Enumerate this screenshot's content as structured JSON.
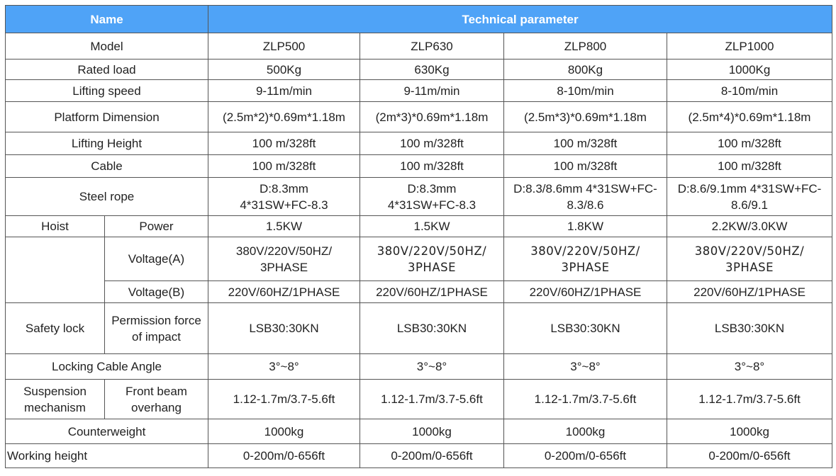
{
  "header": {
    "name": "Name",
    "technical_parameter": "Technical parameter"
  },
  "rows": {
    "model": {
      "label": "Model",
      "values": [
        "ZLP500",
        "ZLP630",
        "ZLP800",
        "ZLP1000"
      ]
    },
    "rated_load": {
      "label": "Rated load",
      "values": [
        "500Kg",
        "630Kg",
        "800Kg",
        "1000Kg"
      ]
    },
    "lifting_speed": {
      "label": "Lifting speed",
      "values": [
        "9-11m/min",
        "9-11m/min",
        "8-10m/min",
        "8-10m/min"
      ]
    },
    "platform_dimension": {
      "label": "Platform Dimension",
      "values": [
        "(2.5m*2)*0.69m*1.18m",
        "(2m*3)*0.69m*1.18m",
        "(2.5m*3)*0.69m*1.18m",
        "(2.5m*4)*0.69m*1.18m"
      ]
    },
    "lifting_height": {
      "label": "Lifting Height",
      "values": [
        "100 m/328ft",
        "100 m/328ft",
        "100 m/328ft",
        "100 m/328ft"
      ]
    },
    "cable": {
      "label": "Cable",
      "values": [
        "100 m/328ft",
        "100 m/328ft",
        "100 m/328ft",
        "100 m/328ft"
      ]
    },
    "steel_rope": {
      "label": "Steel rope",
      "values": [
        {
          "line1": "D:8.3mm",
          "line2": "4*31SW+FC-8.3"
        },
        {
          "line1": "D:8.3mm",
          "line2": "4*31SW+FC-8.3"
        },
        {
          "line1": "D:8.3/8.6mm 4*31SW+FC-",
          "line2": "8.3/8.6"
        },
        {
          "line1": "D:8.6/9.1mm 4*31SW+FC-",
          "line2": "8.6/9.1"
        }
      ]
    },
    "hoist": {
      "label": "Hoist",
      "power": {
        "label": "Power",
        "values": [
          "1.5KW",
          "1.5KW",
          "1.8KW",
          "2.2KW/3.0KW"
        ]
      },
      "voltage_a": {
        "label": "Voltage(A)",
        "values": [
          {
            "line1": "380V/220V/50HZ/",
            "line2": "3PHASE"
          },
          {
            "line1": "380V/220V/50HZ/",
            "line2": "3PHASE"
          },
          {
            "line1": "380V/220V/50HZ/",
            "line2": "3PHASE"
          },
          {
            "line1": "380V/220V/50HZ/",
            "line2": "3PHASE"
          }
        ]
      },
      "voltage_b": {
        "label": "Voltage(B)",
        "values": [
          "220V/60HZ/1PHASE",
          "220V/60HZ/1PHASE",
          "220V/60HZ/1PHASE",
          "220V/60HZ/1PHASE"
        ]
      }
    },
    "safety_lock": {
      "label": "Safety lock",
      "sub_label_line1": "Permission force",
      "sub_label_line2": "of impact",
      "values": [
        "LSB30:30KN",
        "LSB30:30KN",
        "LSB30:30KN",
        "LSB30:30KN"
      ]
    },
    "locking_cable_angle": {
      "label": "Locking Cable Angle",
      "values": [
        "3°~8°",
        "3°~8°",
        "3°~8°",
        "3°~8°"
      ]
    },
    "suspension": {
      "label_line1": "Suspension",
      "label_line2": "mechanism",
      "sub_label_line1": "Front beam",
      "sub_label_line2": "overhang",
      "values": [
        "1.12-1.7m/3.7-5.6ft",
        "1.12-1.7m/3.7-5.6ft",
        "1.12-1.7m/3.7-5.6ft",
        "1.12-1.7m/3.7-5.6ft"
      ]
    },
    "counterweight": {
      "label": "Counterweight",
      "values": [
        "1000kg",
        "1000kg",
        "1000kg",
        "1000kg"
      ]
    },
    "working_height": {
      "label": "Working height",
      "values": [
        "0-200m/0-656ft",
        "0-200m/0-656ft",
        "0-200m/0-656ft",
        "0-200m/0-656ft"
      ]
    }
  }
}
